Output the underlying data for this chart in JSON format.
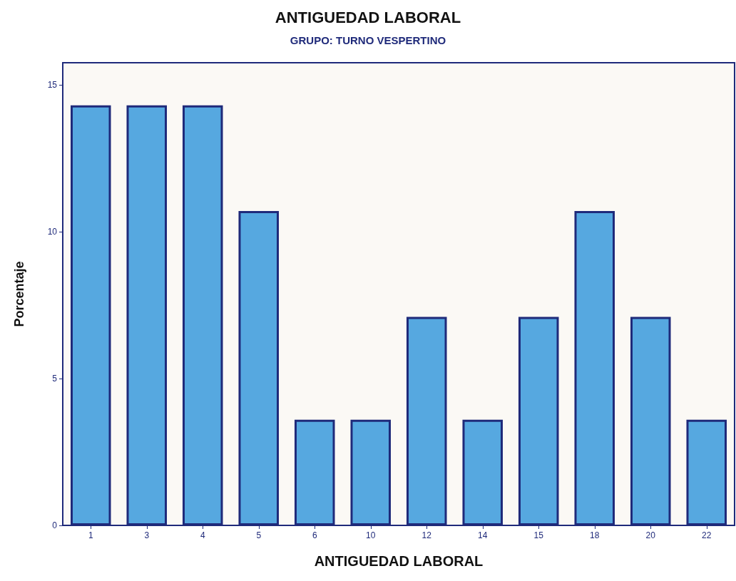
{
  "chart_data": {
    "type": "bar",
    "title": "ANTIGUEDAD LABORAL",
    "subtitle": "GRUPO: TURNO VESPERTINO",
    "xlabel": "ANTIGUEDAD LABORAL",
    "ylabel": "Porcentaje",
    "categories": [
      "1",
      "3",
      "4",
      "5",
      "6",
      "10",
      "12",
      "14",
      "15",
      "18",
      "20",
      "22"
    ],
    "values": [
      14.3,
      14.3,
      14.3,
      10.7,
      3.6,
      3.6,
      7.1,
      3.6,
      7.1,
      10.7,
      7.1,
      3.6
    ],
    "color": "#56a8e0",
    "ylim": [
      0,
      15.75
    ],
    "yticks": [
      0,
      5,
      10,
      15
    ],
    "grid": false
  }
}
